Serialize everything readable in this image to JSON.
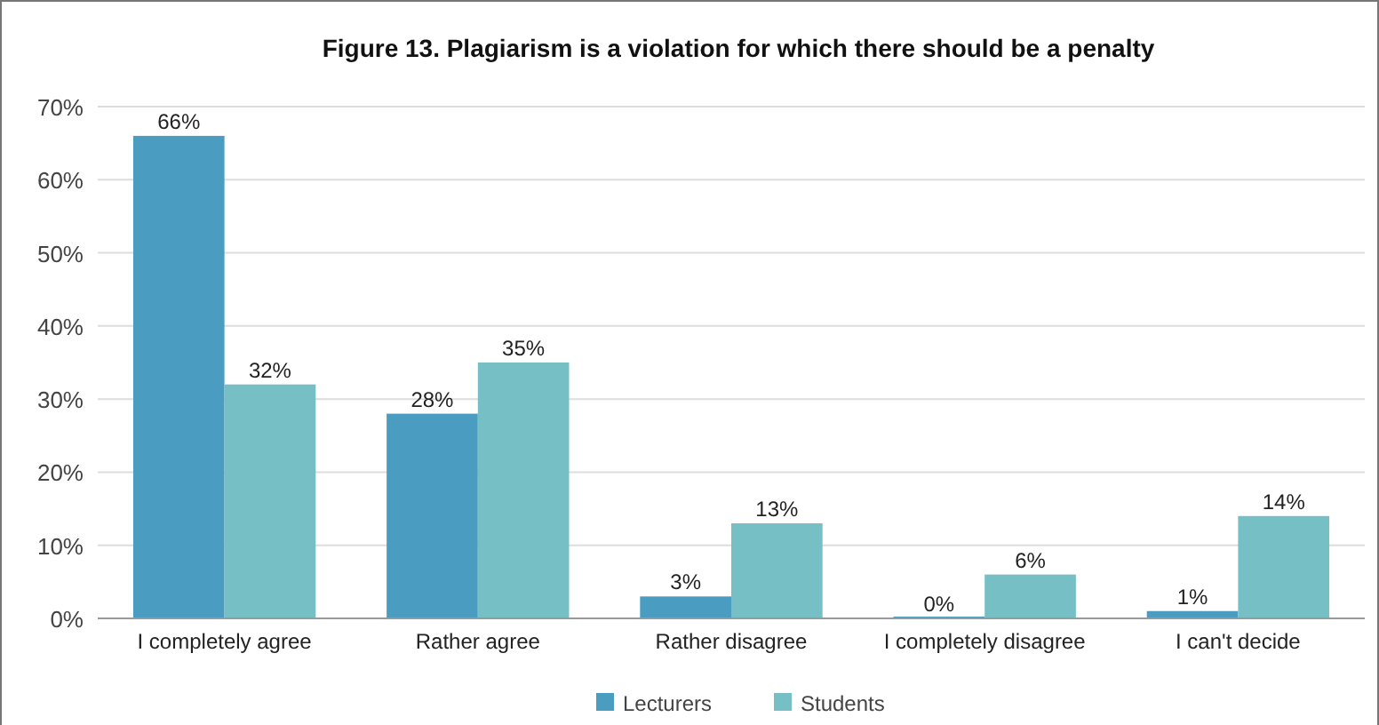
{
  "chart_data": {
    "type": "bar",
    "title": "Figure 13. Plagiarism is a violation for which there should be a penalty",
    "categories": [
      "I completely agree",
      "Rather agree",
      "Rather disagree",
      "I completely disagree",
      "I can't decide"
    ],
    "series": [
      {
        "name": "Lecturers",
        "color": "#4a9dc1",
        "values": [
          66,
          28,
          3,
          0,
          1
        ],
        "value_labels": [
          "66%",
          "28%",
          "3%",
          "0%",
          "1%"
        ]
      },
      {
        "name": "Students",
        "color": "#76bfc5",
        "values": [
          32,
          35,
          13,
          6,
          14
        ],
        "value_labels": [
          "32%",
          "35%",
          "13%",
          "6%",
          "14%"
        ]
      }
    ],
    "ylim": [
      0,
      70
    ],
    "yticks": [
      {
        "value": 0,
        "label": "0%"
      },
      {
        "value": 10,
        "label": "10%"
      },
      {
        "value": 20,
        "label": "20%"
      },
      {
        "value": 30,
        "label": "30%"
      },
      {
        "value": 40,
        "label": "40%"
      },
      {
        "value": 50,
        "label": "50%"
      },
      {
        "value": 60,
        "label": "60%"
      },
      {
        "value": 70,
        "label": "70%"
      }
    ],
    "grid": "y",
    "legend": "bottom"
  }
}
